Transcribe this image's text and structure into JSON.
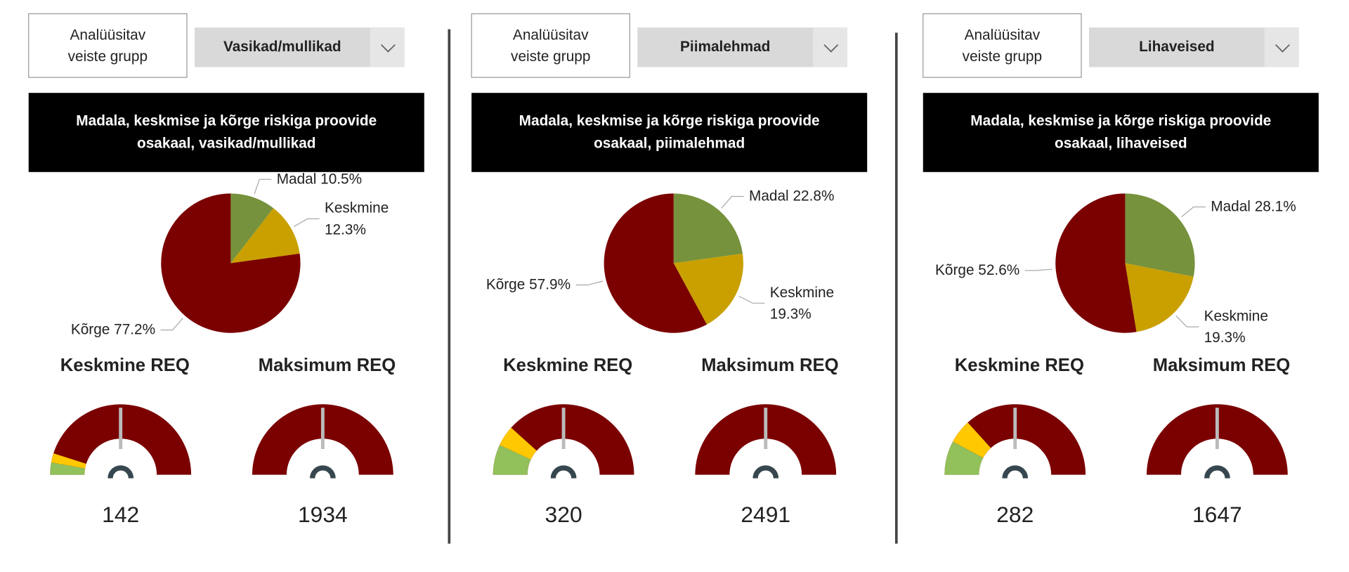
{
  "panels": [
    {
      "selector_label": "Analüüsitav veiste grupp",
      "selector_value": "Vasikad/mullikad"
    },
    {
      "selector_label": "Analüüsitav veiste grupp",
      "selector_value": "Piimalehmad"
    },
    {
      "selector_label": "Analüüsitav veiste grupp",
      "selector_value": "Lihaveised"
    }
  ],
  "chart_data": [
    {
      "type": "pie",
      "title": "Madala, keskmise ja kõrge riskiga proovide osakaal, vasikad/mullikad",
      "categories": [
        "Madal",
        "Keskmine",
        "Kõrge"
      ],
      "values": [
        10.5,
        12.3,
        77.2
      ],
      "value_labels": [
        "10.5%",
        "12.3%",
        "77.2%"
      ],
      "colors": [
        "#76923c",
        "#c9a000",
        "#7b0000"
      ]
    },
    {
      "type": "gauge",
      "title": "Keskmine REQ",
      "value": 142,
      "ylim": [
        0,
        284
      ],
      "color": "#7b0000",
      "bands": [
        {
          "to": 16,
          "color": "#92c05a"
        },
        {
          "to": 28,
          "color": "#ffc800"
        }
      ]
    },
    {
      "type": "gauge",
      "title": "Maksimum REQ",
      "value": 1934,
      "ylim": [
        0,
        3868
      ],
      "color": "#7b0000"
    },
    {
      "type": "pie",
      "title": "Madala, keskmise ja kõrge riskiga proovide osakaal, piimalehmad",
      "categories": [
        "Madal",
        "Keskmine",
        "Kõrge"
      ],
      "values": [
        22.8,
        19.3,
        57.9
      ],
      "value_labels": [
        "22.8%",
        "19.3%",
        "57.9%"
      ],
      "colors": [
        "#76923c",
        "#c9a000",
        "#7b0000"
      ]
    },
    {
      "type": "gauge",
      "title": "Keskmine REQ",
      "value": 320,
      "ylim": [
        0,
        640
      ],
      "color": "#7b0000",
      "bands": [
        {
          "to": 89,
          "color": "#92c05a"
        },
        {
          "to": 149,
          "color": "#ffc800"
        }
      ]
    },
    {
      "type": "gauge",
      "title": "Maksimum REQ",
      "value": 2491,
      "ylim": [
        0,
        4982
      ],
      "color": "#7b0000"
    },
    {
      "type": "pie",
      "title": "Madala, keskmise ja kõrge riskiga proovide osakaal, lihaveised",
      "categories": [
        "Madal",
        "Keskmine",
        "Kõrge"
      ],
      "values": [
        28.1,
        19.3,
        52.6
      ],
      "value_labels": [
        "28.1%",
        "19.3%",
        "52.6%"
      ],
      "colors": [
        "#76923c",
        "#c9a000",
        "#7b0000"
      ]
    },
    {
      "type": "gauge",
      "title": "Keskmine REQ",
      "value": 282,
      "ylim": [
        0,
        564
      ],
      "color": "#7b0000",
      "bands": [
        {
          "to": 88,
          "color": "#92c05a"
        },
        {
          "to": 150,
          "color": "#ffc800"
        }
      ]
    },
    {
      "type": "gauge",
      "title": "Maksimum REQ",
      "value": 1647,
      "ylim": [
        0,
        3294
      ],
      "color": "#7b0000"
    }
  ]
}
